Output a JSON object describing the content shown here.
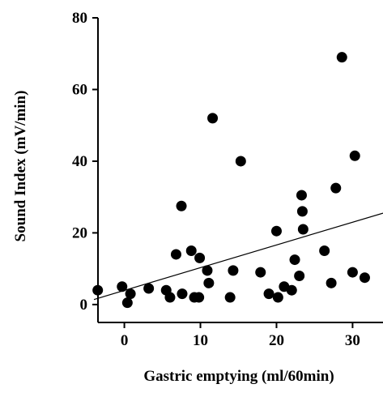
{
  "chart_data": {
    "type": "scatter",
    "title": "",
    "xlabel": "Gastric emptying (ml/60min)",
    "ylabel": "Sound Index (mV/min)",
    "xlim": [
      -4,
      34
    ],
    "ylim": [
      -5,
      80
    ],
    "x_ticks": [
      0,
      10,
      20,
      30
    ],
    "y_ticks": [
      0,
      20,
      40,
      60,
      80
    ],
    "x_tick_labels": [
      "0",
      "10",
      "20",
      "30"
    ],
    "y_tick_labels": [
      "0",
      "20",
      "40",
      "60",
      "80"
    ],
    "grid": false,
    "legend": "none",
    "colors": {
      "points": "#000000",
      "line": "#000000",
      "axes": "#000000"
    },
    "series": [
      {
        "points": [
          {
            "x": -3.5,
            "y": 4
          },
          {
            "x": -0.3,
            "y": 5
          },
          {
            "x": 0.4,
            "y": 0.5
          },
          {
            "x": 0.8,
            "y": 3
          },
          {
            "x": 3.2,
            "y": 4.5
          },
          {
            "x": 5.5,
            "y": 4
          },
          {
            "x": 6.0,
            "y": 2
          },
          {
            "x": 6.8,
            "y": 14
          },
          {
            "x": 7.5,
            "y": 27.5
          },
          {
            "x": 7.6,
            "y": 3
          },
          {
            "x": 8.8,
            "y": 15
          },
          {
            "x": 9.2,
            "y": 2
          },
          {
            "x": 9.8,
            "y": 2
          },
          {
            "x": 9.9,
            "y": 13
          },
          {
            "x": 10.9,
            "y": 9.5
          },
          {
            "x": 11.1,
            "y": 6
          },
          {
            "x": 11.6,
            "y": 52
          },
          {
            "x": 13.9,
            "y": 2
          },
          {
            "x": 14.3,
            "y": 9.5
          },
          {
            "x": 15.3,
            "y": 40
          },
          {
            "x": 17.9,
            "y": 9
          },
          {
            "x": 19.0,
            "y": 3
          },
          {
            "x": 20.0,
            "y": 20.5
          },
          {
            "x": 20.2,
            "y": 2
          },
          {
            "x": 21.0,
            "y": 5
          },
          {
            "x": 22.0,
            "y": 4
          },
          {
            "x": 22.4,
            "y": 12.5
          },
          {
            "x": 23.0,
            "y": 8
          },
          {
            "x": 23.3,
            "y": 30.5
          },
          {
            "x": 23.4,
            "y": 26
          },
          {
            "x": 23.5,
            "y": 21
          },
          {
            "x": 26.3,
            "y": 15
          },
          {
            "x": 27.2,
            "y": 6
          },
          {
            "x": 27.8,
            "y": 32.5
          },
          {
            "x": 28.6,
            "y": 69
          },
          {
            "x": 30.0,
            "y": 9
          },
          {
            "x": 30.3,
            "y": 41.5
          },
          {
            "x": 31.6,
            "y": 7.5
          }
        ]
      }
    ],
    "regression_line": {
      "x": [
        -4,
        34
      ],
      "y": [
        1.4,
        25.5
      ]
    }
  }
}
